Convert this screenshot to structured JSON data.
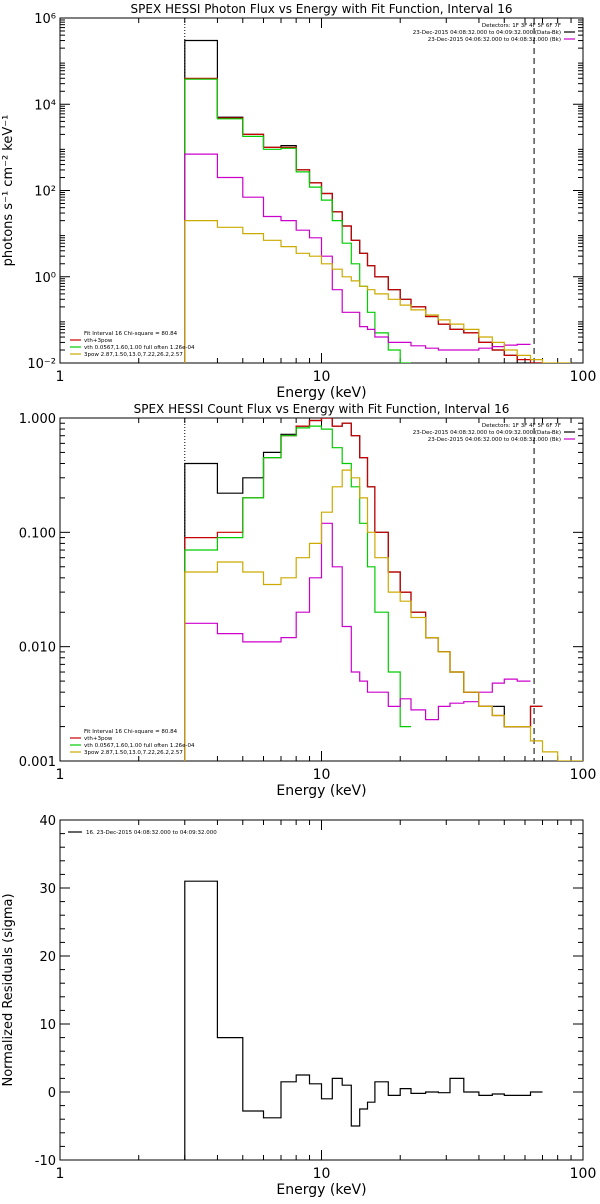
{
  "chart_data": [
    {
      "type": "line",
      "title": "SPEX HESSI Photon Flux vs Energy with Fit Function, Interval 16",
      "xlabel": "Energy (keV)",
      "ylabel": "photons s⁻¹ cm⁻² keV⁻¹",
      "x_scale": "log",
      "y_scale": "log",
      "xlim": [
        1,
        100
      ],
      "ylim": [
        0.01,
        1000000
      ],
      "x_ticks": [
        {
          "v": 1,
          "label": "1"
        },
        {
          "v": 10,
          "label": "10"
        },
        {
          "v": 100,
          "label": "100"
        }
      ],
      "y_ticks": [
        {
          "v": 0.01,
          "label": "10⁻²"
        },
        {
          "v": 1,
          "label": "10⁰"
        },
        {
          "v": 100,
          "label": "10²"
        },
        {
          "v": 10000,
          "label": "10⁴"
        },
        {
          "v": 1000000,
          "label": "10⁶"
        }
      ],
      "vlines": [
        {
          "x": 3,
          "style": "dotted"
        },
        {
          "x": 65,
          "style": "dashed"
        }
      ],
      "legend_topright": {
        "lines": [
          "Detectors: 1F 3F 4F 5F 6F 7F",
          "23-Dec-2015 04:08:32.000 to 04:09:32.000 (Data-Bk)",
          "23-Dec-2015 04:06:32.000 to 04:08:32.000 (Bk)"
        ],
        "colors": [
          "#000000",
          "#000000",
          "#cc00cc"
        ]
      },
      "legend_bottomleft": {
        "lines": [
          "Fit Interval 16   Chi-square = 80.84",
          "vth+3pow",
          "vth 0.0567,1.60,1.00  full often 1.26e-04",
          "3pow 2.87,1.50,13.0,7.22,26.2,2.57"
        ],
        "colors": [
          "#000000",
          "#cc0000",
          "#00cc00",
          "#ccaa00"
        ]
      },
      "series": [
        {
          "color": "#000000",
          "edges": [
            3,
            4,
            5,
            6,
            7,
            8,
            9,
            10,
            11,
            12,
            13,
            14,
            15,
            16,
            18,
            20,
            22,
            25,
            28,
            31,
            35,
            40,
            45,
            50,
            56,
            63,
            70
          ],
          "values": [
            300000,
            5000,
            2000,
            1000,
            1100,
            300,
            150,
            85,
            32,
            15,
            7,
            3.5,
            1.8,
            1,
            0.5,
            0.3,
            0.2,
            0.12,
            0.08,
            0.06,
            0.05,
            0.03,
            0.02,
            0.015,
            0.01,
            0.01
          ]
        },
        {
          "color": "#cc0000",
          "edges": [
            3,
            4,
            5,
            6,
            7,
            8,
            9,
            10,
            11,
            12,
            13,
            14,
            15,
            16,
            18,
            20,
            22,
            25,
            28,
            31,
            35,
            40,
            45,
            50,
            56,
            63,
            70
          ],
          "values": [
            40000,
            4800,
            2000,
            1000,
            1000,
            300,
            150,
            85,
            32,
            15,
            7,
            3.5,
            1.8,
            1,
            0.5,
            0.3,
            0.2,
            0.12,
            0.08,
            0.06,
            0.05,
            0.03,
            0.02,
            0.015,
            0.012,
            0.01
          ]
        },
        {
          "color": "#00cc00",
          "edges": [
            3,
            4,
            5,
            6,
            7,
            8,
            9,
            10,
            11,
            12,
            13,
            14,
            15,
            16,
            18,
            20,
            22
          ],
          "values": [
            38000,
            4600,
            1800,
            900,
            950,
            270,
            120,
            60,
            20,
            6,
            2,
            0.6,
            0.15,
            0.05,
            0.02,
            0.01
          ]
        },
        {
          "color": "#cc00cc",
          "edges": [
            3,
            4,
            5,
            6,
            7,
            8,
            9,
            10,
            11,
            12,
            13,
            14,
            15,
            16,
            18,
            20,
            22,
            25,
            28,
            31,
            35,
            40,
            45,
            50,
            56,
            63
          ],
          "values": [
            700,
            200,
            70,
            25,
            20,
            12,
            8,
            3,
            0.5,
            0.15,
            0.15,
            0.07,
            0.06,
            0.04,
            0.03,
            0.03,
            0.025,
            0.022,
            0.02,
            0.02,
            0.02,
            0.022,
            0.024,
            0.026,
            0.027
          ]
        },
        {
          "color": "#ccaa00",
          "edges": [
            3,
            4,
            5,
            6,
            7,
            8,
            9,
            10,
            11,
            12,
            13,
            14,
            15,
            16,
            18,
            20,
            22,
            25,
            28,
            31,
            35,
            40,
            45,
            50,
            56,
            63,
            70,
            80,
            90
          ],
          "values": [
            20,
            14,
            10,
            7,
            5,
            3.5,
            3,
            2,
            1.5,
            1,
            0.8,
            0.6,
            0.5,
            0.4,
            0.3,
            0.22,
            0.17,
            0.13,
            0.1,
            0.08,
            0.06,
            0.04,
            0.03,
            0.02,
            0.015,
            0.012,
            0.01,
            0.01
          ]
        }
      ]
    },
    {
      "type": "line",
      "title": "SPEX HESSI Count Flux vs Energy with Fit Function, Interval 16",
      "xlabel": "Energy (keV)",
      "ylabel": "",
      "x_scale": "log",
      "y_scale": "log",
      "xlim": [
        1,
        100
      ],
      "ylim": [
        0.001,
        1
      ],
      "x_ticks": [
        {
          "v": 1,
          "label": "1"
        },
        {
          "v": 10,
          "label": "10"
        },
        {
          "v": 100,
          "label": "100"
        }
      ],
      "y_ticks": [
        {
          "v": 0.001,
          "label": "0.001"
        },
        {
          "v": 0.01,
          "label": "0.010"
        },
        {
          "v": 0.1,
          "label": "0.100"
        },
        {
          "v": 1,
          "label": "1.000"
        }
      ],
      "vlines": [
        {
          "x": 3,
          "style": "dotted"
        },
        {
          "x": 65,
          "style": "dashed"
        }
      ],
      "legend_topright": {
        "lines": [
          "Detectors: 1F 3F 4F 5F 6F 7F",
          "23-Dec-2015 04:08:32.000 to 04:09:32.000 (Data-Bk)",
          "23-Dec-2015 04:06:32.000 to 04:08:32.000 (Bk)"
        ],
        "colors": [
          "#000000",
          "#000000",
          "#cc00cc"
        ]
      },
      "legend_bottomleft": {
        "lines": [
          "Fit Interval 16   Chi-square = 80.84",
          "vth+3pow",
          "vth 0.0567,1.60,1.00  full often 1.26e-04",
          "3pow 2.87,1.50,13.0,7.22,26.2,2.57"
        ],
        "colors": [
          "#000000",
          "#cc0000",
          "#00cc00",
          "#ccaa00"
        ]
      },
      "series": [
        {
          "color": "#000000",
          "edges": [
            3,
            4,
            5,
            6,
            7,
            8,
            9,
            10,
            11,
            12,
            13,
            14,
            15,
            16,
            18,
            20,
            22,
            25,
            28,
            31,
            35,
            40,
            45,
            50,
            56,
            63,
            70
          ],
          "values": [
            0.4,
            0.22,
            0.3,
            0.5,
            0.72,
            0.85,
            0.95,
            1.0,
            0.85,
            0.9,
            0.7,
            0.45,
            0.25,
            0.1,
            0.045,
            0.03,
            0.02,
            0.012,
            0.009,
            0.006,
            0.004,
            0.003,
            0.003,
            0.002,
            0.002,
            0.003
          ]
        },
        {
          "color": "#cc0000",
          "edges": [
            3,
            4,
            5,
            6,
            7,
            8,
            9,
            10,
            11,
            12,
            13,
            14,
            15,
            16,
            18,
            20,
            22,
            25,
            28,
            31,
            35,
            40,
            45,
            50,
            56,
            63,
            70
          ],
          "values": [
            0.09,
            0.1,
            0.2,
            0.45,
            0.7,
            0.85,
            0.95,
            1.0,
            0.85,
            0.9,
            0.7,
            0.45,
            0.25,
            0.1,
            0.045,
            0.03,
            0.02,
            0.012,
            0.009,
            0.006,
            0.004,
            0.003,
            0.0025,
            0.002,
            0.002,
            0.003
          ]
        },
        {
          "color": "#00cc00",
          "edges": [
            3,
            4,
            5,
            6,
            7,
            8,
            9,
            10,
            11,
            12,
            13,
            14,
            15,
            16,
            18,
            20,
            22
          ],
          "values": [
            0.07,
            0.09,
            0.2,
            0.45,
            0.7,
            0.82,
            0.85,
            0.8,
            0.55,
            0.4,
            0.25,
            0.12,
            0.05,
            0.02,
            0.006,
            0.002
          ]
        },
        {
          "color": "#cc00cc",
          "edges": [
            3,
            4,
            5,
            6,
            7,
            8,
            9,
            10,
            11,
            12,
            13,
            14,
            15,
            16,
            18,
            20,
            22,
            25,
            28,
            31,
            35,
            40,
            45,
            50,
            56,
            63
          ],
          "values": [
            0.016,
            0.013,
            0.011,
            0.011,
            0.012,
            0.02,
            0.04,
            0.12,
            0.05,
            0.015,
            0.006,
            0.005,
            0.004,
            0.004,
            0.003,
            0.0035,
            0.0028,
            0.0023,
            0.003,
            0.0032,
            0.0033,
            0.004,
            0.0048,
            0.0052,
            0.005
          ]
        },
        {
          "color": "#ccaa00",
          "edges": [
            3,
            4,
            5,
            6,
            7,
            8,
            9,
            10,
            11,
            12,
            13,
            14,
            15,
            16,
            18,
            20,
            22,
            25,
            28,
            31,
            35,
            40,
            45,
            50,
            56,
            63,
            70,
            80,
            90,
            100
          ],
          "values": [
            0.045,
            0.055,
            0.045,
            0.035,
            0.04,
            0.06,
            0.08,
            0.15,
            0.25,
            0.35,
            0.3,
            0.2,
            0.1,
            0.06,
            0.03,
            0.025,
            0.018,
            0.012,
            0.009,
            0.006,
            0.004,
            0.003,
            0.0025,
            0.002,
            0.002,
            0.0015,
            0.0012,
            0.001,
            0.001
          ]
        }
      ]
    },
    {
      "type": "line",
      "title": "",
      "xlabel": "Energy (keV)",
      "ylabel": "Normalized Residuals (sigma)",
      "x_scale": "log",
      "y_scale": "linear",
      "xlim": [
        1,
        100
      ],
      "ylim": [
        -10,
        40
      ],
      "x_ticks": [
        {
          "v": 1,
          "label": "1"
        },
        {
          "v": 10,
          "label": "10"
        },
        {
          "v": 100,
          "label": "100"
        }
      ],
      "y_ticks": [
        {
          "v": -10,
          "label": "-10"
        },
        {
          "v": 0,
          "label": "0"
        },
        {
          "v": 10,
          "label": "10"
        },
        {
          "v": 20,
          "label": "20"
        },
        {
          "v": 30,
          "label": "30"
        },
        {
          "v": 40,
          "label": "40"
        }
      ],
      "legend_topleft": {
        "lines": [
          "16. 23-Dec-2015 04:08:32.000 to 04:09:32.000"
        ],
        "colors": [
          "#000000"
        ]
      },
      "series": [
        {
          "color": "#000000",
          "edges": [
            3,
            4,
            5,
            6,
            7,
            8,
            9,
            10,
            11,
            12,
            13,
            14,
            15,
            16,
            18,
            20,
            22,
            25,
            28,
            31,
            35,
            40,
            45,
            50,
            56,
            63,
            70
          ],
          "values": [
            31,
            8,
            -2.8,
            -3.8,
            1.5,
            2.5,
            1.2,
            -1,
            2,
            1,
            -5,
            -2.5,
            -1.5,
            1.5,
            -0.5,
            0.5,
            -0.2,
            0,
            -0.1,
            2,
            0,
            -0.5,
            -0.3,
            -0.5,
            -0.5,
            0
          ]
        }
      ]
    }
  ]
}
